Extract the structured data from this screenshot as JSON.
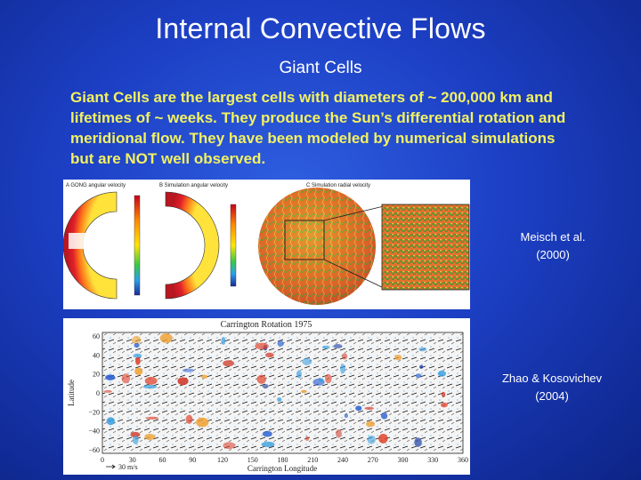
{
  "slide": {
    "title": "Internal Convective Flows",
    "subtitle": "Giant Cells",
    "body": "Giant Cells are the largest cells with diameters of ~ 200,000 km and lifetimes of ~ weeks. They produce the Sun’s differential rotation and meridional flow. They have been modeled by numerical simulations but are NOT well observed."
  },
  "figures": {
    "simulation": {
      "panel_a": "A GONG angular velocity",
      "panel_b": "B Simulation angular velocity",
      "panel_c": "C Simulation radial velocity",
      "caption": "Meisch et al.\n(2000)"
    },
    "observation": {
      "title": "Carrington Rotation 1975",
      "ylabel": "Latitude",
      "xlabel": "Carrington Longitude",
      "y_ticks": [
        "60",
        "40",
        "20",
        "0",
        "−20",
        "−40",
        "−60"
      ],
      "x_ticks": [
        "0",
        "30",
        "60",
        "90",
        "120",
        "150",
        "180",
        "210",
        "240",
        "270",
        "300",
        "330",
        "360"
      ],
      "scale_label": "30 m/s",
      "caption": "Zhao & Kosovichev\n(2004)"
    }
  },
  "colors": {
    "background": "#1c3fc4",
    "body_text": "#f3f160"
  }
}
